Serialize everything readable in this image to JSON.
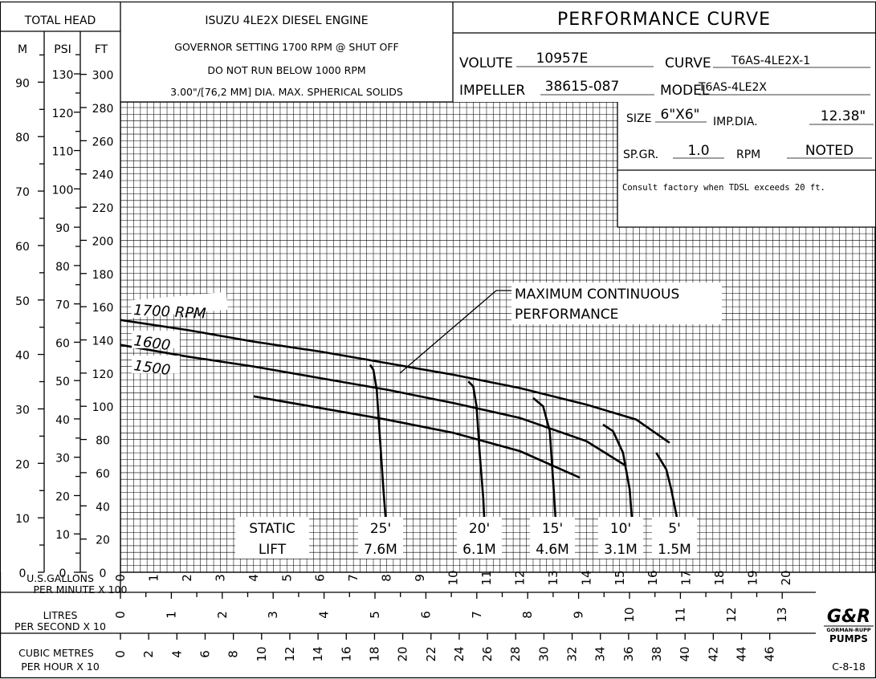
{
  "header": {
    "total_head_label": "TOTAL HEAD",
    "unit_m": "M",
    "unit_psi": "PSI",
    "unit_ft": "FT",
    "engine": "ISUZU 4LE2X DIESEL ENGINE",
    "governor": "GOVERNOR SETTING 1700 RPM @ SHUT OFF",
    "min_rpm": "DO NOT RUN BELOW 1000 RPM",
    "solids": "3.00\"/[76,2 MM] DIA. MAX. SPHERICAL SOLIDS",
    "title": "PERFORMANCE CURVE",
    "volute_label": "VOLUTE",
    "volute_value": "10957E",
    "curve_label": "CURVE",
    "curve_value": "T6AS-4LE2X-1",
    "impeller_label": "IMPELLER",
    "impeller_value": "38615-087",
    "model_label": "MODEL",
    "model_value": "T6AS-4LE2X",
    "size_label": "SIZE",
    "size_value": "6\"X6\"",
    "impdia_label": "IMP.DIA.",
    "impdia_value": "12.38\"",
    "spgr_label": "SP.GR.",
    "spgr_value": "1.0",
    "rpm_label": "RPM",
    "rpm_value": "NOTED",
    "note": "Consult factory when TDSL exceeds 20 ft."
  },
  "labels": {
    "gpm_axis_1": "U.S.GALLONS",
    "gpm_axis_2": "PER MINUTE X 100",
    "lps_axis_1": "LITRES",
    "lps_axis_2": "PER SECOND X 10",
    "cmh_axis_1": "CUBIC METRES",
    "cmh_axis_2": "PER HOUR X 10",
    "mcp_1": "MAXIMUM CONTINUOUS",
    "mcp_2": "PERFORMANCE",
    "static_1": "STATIC",
    "static_2": "LIFT",
    "drawing_no": "C-8-18",
    "logo_main": "G&R",
    "logo_sub": "GORMAN-RUPP",
    "logo_pumps": "PUMPS"
  },
  "chart_data": {
    "type": "line",
    "xlabel": "U.S.GALLONS PER MINUTE X 100",
    "ylabel": "TOTAL HEAD",
    "xlim": [
      0,
      23
    ],
    "ylim": [
      0,
      280
    ],
    "ft_ticks": [
      0,
      20,
      40,
      60,
      80,
      100,
      120,
      140,
      160,
      180,
      200,
      220,
      240,
      260,
      280,
      300
    ],
    "psi_ticks": [
      0,
      10,
      20,
      30,
      40,
      50,
      60,
      70,
      80,
      90,
      100,
      110,
      120,
      130
    ],
    "m_ticks": [
      0,
      10,
      20,
      30,
      40,
      50,
      60,
      70,
      80,
      90
    ],
    "gpm_ticks": [
      0,
      1,
      2,
      3,
      4,
      5,
      6,
      7,
      8,
      9,
      10,
      11,
      12,
      13,
      14,
      15,
      16,
      17,
      18,
      19,
      20
    ],
    "lps_ticks": [
      0,
      1,
      2,
      3,
      4,
      5,
      6,
      7,
      8,
      9,
      10,
      11,
      12,
      13
    ],
    "cmh_ticks": [
      0,
      2,
      4,
      6,
      8,
      10,
      12,
      14,
      16,
      18,
      20,
      22,
      24,
      26,
      28,
      30,
      32,
      34,
      36,
      38,
      40,
      42,
      44,
      46
    ],
    "series": [
      {
        "name": "1700 RPM",
        "x": [
          0,
          2,
          4,
          6,
          8,
          10,
          12,
          14,
          15.5,
          16.5
        ],
        "y": [
          152,
          146,
          139,
          133,
          126,
          119,
          111,
          101,
          92,
          78
        ]
      },
      {
        "name": "1600",
        "x": [
          0,
          2,
          4,
          6,
          8,
          10,
          12,
          14,
          15.2
        ],
        "y": [
          137,
          130,
          124,
          117,
          110,
          102,
          93,
          79,
          64
        ]
      },
      {
        "name": "1500",
        "x": [
          4,
          6,
          8,
          10,
          12,
          13.8
        ],
        "y": [
          106,
          99,
          92,
          84,
          73,
          57
        ]
      }
    ],
    "static_lift_curves": [
      {
        "label": "25'",
        "label_m": "7.6M",
        "x": [
          7.5,
          7.6,
          7.7,
          7.8,
          7.9,
          8.0
        ],
        "y": [
          125,
          122,
          110,
          80,
          50,
          24
        ]
      },
      {
        "label": "20'",
        "label_m": "6.1M",
        "x": [
          10.45,
          10.6,
          10.7,
          10.8,
          10.9,
          10.95
        ],
        "y": [
          115,
          112,
          100,
          70,
          45,
          24
        ]
      },
      {
        "label": "15'",
        "label_m": "4.6M",
        "x": [
          12.4,
          12.7,
          12.9,
          13.0,
          13.1
        ],
        "y": [
          105,
          100,
          85,
          55,
          24
        ]
      },
      {
        "label": "10'",
        "label_m": "3.1M",
        "x": [
          14.5,
          14.8,
          15.1,
          15.3,
          15.4
        ],
        "y": [
          89,
          85,
          72,
          50,
          24
        ]
      },
      {
        "label": "5'",
        "label_m": "1.5M",
        "x": [
          16.1,
          16.4,
          16.55,
          16.7,
          16.8
        ],
        "y": [
          72,
          62,
          50,
          35,
          24
        ]
      }
    ]
  }
}
